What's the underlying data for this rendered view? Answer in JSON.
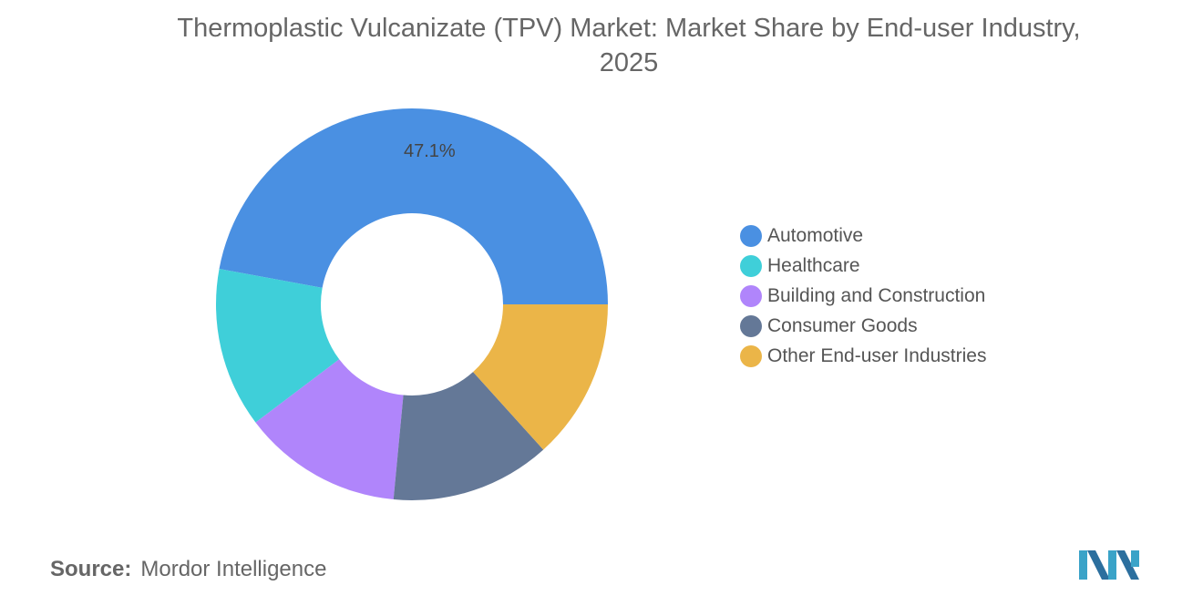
{
  "title_lines": [
    "Thermoplastic Vulcanizate (TPV) Market: Market Share by End-user Industry,",
    "2025"
  ],
  "chart_data": {
    "type": "pie",
    "variant": "donut",
    "title": "Thermoplastic Vulcanizate (TPV) Market: Market Share by End-user Industry, 2025",
    "categories": [
      "Automotive",
      "Healthcare",
      "Building and Construction",
      "Consumer Goods",
      "Other End-user Industries"
    ],
    "values": [
      47.1,
      13.2,
      13.2,
      13.2,
      13.3
    ],
    "colors": [
      "#4a90e2",
      "#3fcfd9",
      "#b085fb",
      "#647897",
      "#ebb548"
    ],
    "data_labels": [
      "47.1%",
      "",
      "",
      "",
      ""
    ],
    "legend_position": "right"
  },
  "source": {
    "label": "Source:",
    "value": "Mordor Intelligence"
  },
  "logo_icon": "mordor-intelligence-logo"
}
